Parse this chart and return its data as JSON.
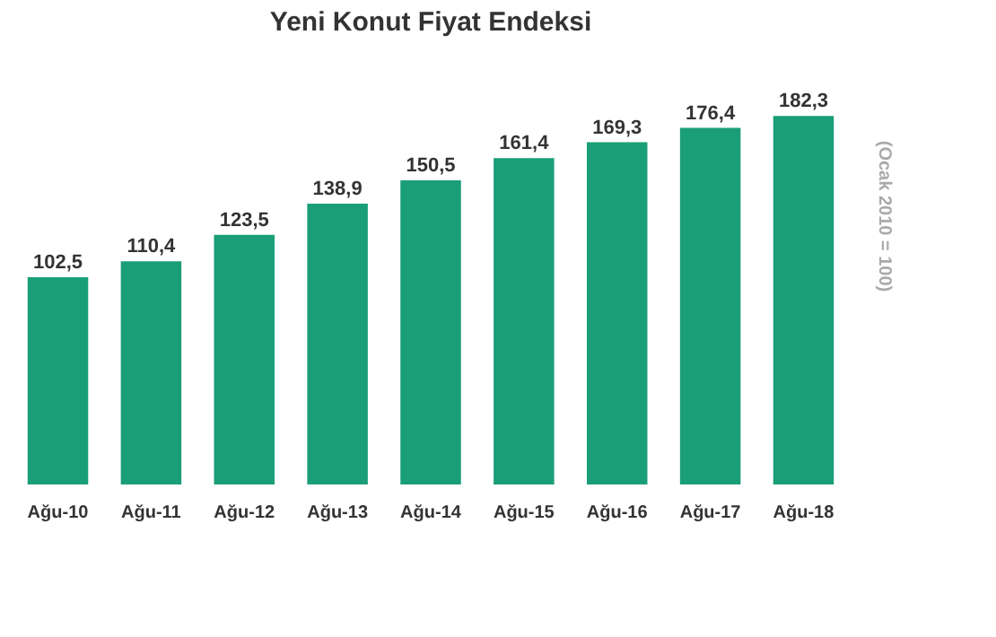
{
  "chart_data": {
    "type": "bar",
    "title": "Yeni Konut Fiyat Endeksi",
    "categories": [
      "Ağu-10",
      "Ağu-11",
      "Ağu-12",
      "Ağu-13",
      "Ağu-14",
      "Ağu-15",
      "Ağu-16",
      "Ağu-17",
      "Ağu-18"
    ],
    "values": [
      102.5,
      110.4,
      123.5,
      138.9,
      150.5,
      161.4,
      169.3,
      176.4,
      182.3
    ],
    "value_labels": [
      "102,5",
      "110,4",
      "123,5",
      "138,9",
      "150,5",
      "161,4",
      "169,3",
      "176,4",
      "182,3"
    ],
    "color": "#1a9e78",
    "annotations": [
      "(Ocak 2010 = 100)"
    ]
  }
}
